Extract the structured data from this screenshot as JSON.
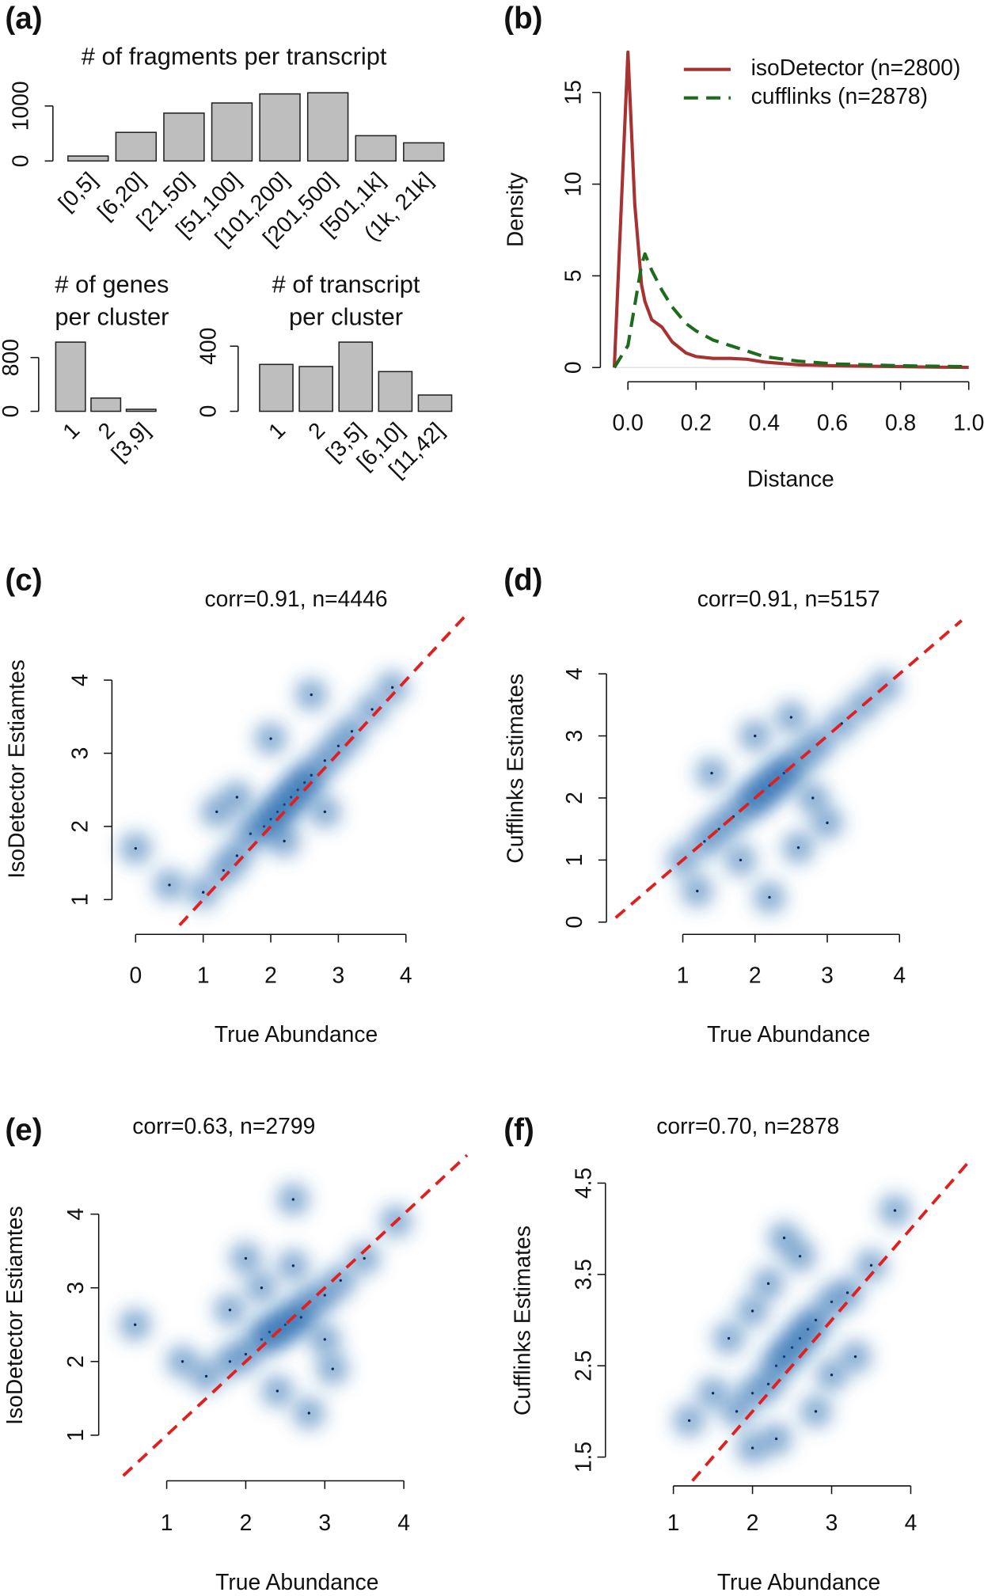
{
  "chart_data": [
    {
      "type": "bar",
      "panel_label": "(a)",
      "title": [
        "# of fragments per transcript"
      ],
      "categories": [
        "[0,5]",
        "[6,20]",
        "[21,50]",
        "[51,100]",
        "[101,200]",
        "[201,500]",
        "[501,1k]",
        "(1k, 21k]"
      ],
      "values": [
        90,
        520,
        870,
        1055,
        1220,
        1240,
        460,
        330
      ],
      "color": "#bebebe",
      "ylim": [
        0,
        1240
      ],
      "yticks": [
        0,
        1000
      ]
    },
    {
      "type": "bar",
      "title": [
        "# of genes",
        "per cluster"
      ],
      "categories": [
        "1",
        "2",
        "[3,9]"
      ],
      "values": [
        1030,
        197,
        30
      ],
      "color": "#bebebe",
      "ylim": [
        0,
        1030
      ],
      "yticks": [
        0,
        800
      ]
    },
    {
      "type": "bar",
      "title": [
        "# of transcript",
        "per cluster"
      ],
      "categories": [
        "1",
        "2",
        "[3,5]",
        "[6,10]",
        "[11,42]"
      ],
      "values": [
        288,
        275,
        425,
        244,
        100
      ],
      "color": "#bebebe",
      "ylim": [
        0,
        425
      ],
      "yticks": [
        0,
        400
      ]
    },
    {
      "type": "line",
      "panel_label": "(b)",
      "x_label": "Distance",
      "y_label": "Density",
      "legend": "topright",
      "x": [
        -0.04,
        0,
        0.02,
        0.04,
        0.05,
        0.07,
        0.1,
        0.13,
        0.17,
        0.2,
        0.25,
        0.3,
        0.35,
        0.4,
        0.5,
        0.6,
        0.7,
        0.8,
        0.9,
        1.0
      ],
      "series": [
        {
          "name": "isoDetector (n=2800)",
          "color": "#a83232",
          "dash": false,
          "values": [
            0,
            17.2,
            8.9,
            4.5,
            3.6,
            2.6,
            2.2,
            1.4,
            0.8,
            0.6,
            0.5,
            0.5,
            0.45,
            0.3,
            0.15,
            0.1,
            0.07,
            0.05,
            0.02,
            0.01
          ]
        },
        {
          "name": "cufflinks (n=2878)",
          "color": "#1e6b1e",
          "dash": true,
          "values": [
            0,
            1.2,
            3.4,
            5.6,
            6.2,
            5.3,
            4.2,
            3.3,
            2.4,
            2.0,
            1.5,
            1.2,
            0.9,
            0.6,
            0.35,
            0.2,
            0.15,
            0.1,
            0.07,
            0.05
          ]
        }
      ],
      "xlim": [
        -0.045,
        1.0
      ],
      "xticks": [
        {
          "value": 0,
          "label": "0.0"
        },
        0.2,
        0.4,
        0.6,
        0.8,
        {
          "value": 1,
          "label": "1.0"
        }
      ],
      "ylim": [
        0,
        17.2
      ],
      "yticks": [
        0,
        5,
        10,
        15
      ]
    },
    {
      "type": "scatter",
      "panel_label": "(c)",
      "title": "corr=0.91, n=4446",
      "x_label": "True Abundance",
      "y_label": "IsoDetector Estiamtes",
      "x": [
        1.0,
        1.3,
        1.5,
        1.7,
        1.9,
        2.0,
        2.1,
        2.2,
        2.3,
        2.4,
        2.5,
        2.6,
        2.8,
        3.0,
        3.2,
        3.5,
        1.5,
        2.0,
        2.6,
        0.5,
        1.2,
        2.8,
        0.0,
        3.8,
        2.2
      ],
      "y": [
        1.1,
        1.4,
        1.6,
        1.9,
        2.0,
        2.1,
        2.2,
        2.3,
        2.4,
        2.5,
        2.6,
        2.7,
        2.9,
        3.1,
        3.3,
        3.6,
        2.4,
        3.2,
        3.8,
        1.2,
        2.2,
        2.2,
        1.7,
        3.9,
        1.8
      ],
      "color": "#2b6cb0",
      "xlim": [
        -0.2,
        4.95
      ],
      "xticks": [
        0,
        1,
        2,
        3,
        4
      ],
      "ylim": [
        0.65,
        4.92
      ],
      "yticks": [
        1,
        2,
        3,
        4
      ]
    },
    {
      "type": "scatter",
      "panel_label": "(d)",
      "title": "corr=0.91, n=5157",
      "x_label": "True Abundance",
      "y_label": "Cufflinks Estimates",
      "x": [
        1.0,
        1.3,
        1.5,
        1.7,
        1.9,
        2.0,
        2.1,
        2.2,
        2.3,
        2.4,
        2.5,
        2.7,
        2.9,
        3.2,
        3.5,
        3.8,
        1.4,
        2.0,
        2.5,
        1.2,
        2.6,
        3.0,
        2.2,
        1.8,
        2.8
      ],
      "y": [
        1.0,
        1.3,
        1.5,
        1.7,
        1.9,
        2.0,
        2.1,
        2.2,
        2.3,
        2.4,
        2.5,
        2.7,
        2.9,
        3.2,
        3.5,
        3.8,
        2.4,
        3.0,
        3.3,
        0.5,
        1.2,
        1.6,
        0.4,
        1.0,
        2.0
      ],
      "color": "#2b6cb0",
      "xlim": [
        0.07,
        4.86
      ],
      "xticks": [
        1,
        2,
        3,
        4
      ],
      "ylim": [
        -0.05,
        5.0
      ],
      "yticks": [
        0,
        1,
        2,
        3,
        4
      ]
    },
    {
      "type": "scatter",
      "panel_label": "(e)",
      "title": "corr=0.63, n=2799",
      "x_label": "True Abundance",
      "y_label": "IsoDetector Estiamtes",
      "x": [
        1.5,
        1.8,
        2.0,
        2.2,
        2.3,
        2.4,
        2.5,
        2.6,
        2.7,
        2.8,
        3.0,
        3.2,
        3.5,
        1.8,
        2.2,
        2.6,
        3.0,
        2.4,
        3.1,
        1.2,
        2.0,
        2.8,
        3.9,
        0.6,
        2.6
      ],
      "y": [
        1.8,
        2.0,
        2.1,
        2.3,
        2.4,
        2.4,
        2.5,
        2.6,
        2.6,
        2.8,
        2.9,
        3.1,
        3.4,
        2.7,
        3.0,
        3.3,
        2.3,
        1.6,
        1.9,
        2.0,
        3.4,
        1.3,
        3.9,
        2.5,
        4.2
      ],
      "color": "#2b6cb0",
      "xlim": [
        0.41,
        4.89
      ],
      "xticks": [
        1,
        2,
        3,
        4
      ],
      "ylim": [
        0.45,
        4.8
      ],
      "yticks": [
        1,
        2,
        3,
        4
      ]
    },
    {
      "type": "scatter",
      "panel_label": "(f)",
      "title": "corr=0.70, n=2878",
      "x_label": "True Abundance",
      "y_label": "Cufflinks Estimates",
      "x": [
        1.8,
        2.0,
        2.2,
        2.3,
        2.4,
        2.5,
        2.6,
        2.7,
        2.8,
        3.0,
        3.2,
        3.5,
        1.7,
        2.0,
        2.2,
        2.6,
        3.0,
        2.3,
        2.0,
        1.5,
        3.3,
        3.8,
        2.8,
        1.2,
        2.4
      ],
      "y": [
        2.0,
        2.2,
        2.3,
        2.5,
        2.6,
        2.7,
        2.8,
        2.9,
        3.0,
        3.2,
        3.3,
        3.6,
        2.8,
        3.1,
        3.4,
        3.7,
        2.4,
        1.7,
        1.6,
        2.2,
        2.6,
        4.2,
        2.0,
        1.9,
        3.9
      ],
      "color": "#2b6cb0",
      "xlim": [
        0.27,
        4.9
      ],
      "xticks": [
        1,
        2,
        3,
        4
      ],
      "ylim": [
        1.24,
        4.75
      ],
      "yticks": [
        1.5,
        2.5,
        3.5,
        4.5
      ]
    }
  ]
}
